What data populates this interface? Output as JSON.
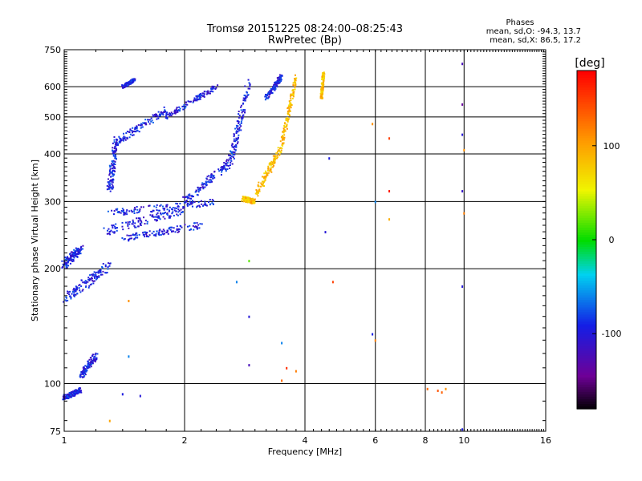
{
  "title": "Tromsø 20151225 08:24:00–08:25:43",
  "subtitle": "RwPretec (Bp)",
  "stats": {
    "heading": "Phases",
    "line_o": "mean, sd,O: -94.3, 13.7",
    "line_x": "mean, sd,X:  86.5, 17.2"
  },
  "chart_data": {
    "type": "scatter",
    "xlabel": "Frequency [MHz]",
    "ylabel": "Stationary phase Virtual Height [km]",
    "xscale": "log",
    "yscale": "log",
    "xlim": [
      1,
      16
    ],
    "ylim": [
      75,
      750
    ],
    "xticks": [
      1,
      2,
      4,
      6,
      8,
      10,
      16
    ],
    "xtick_labels": [
      "1",
      "2",
      "4",
      "6",
      "8",
      "10",
      "16"
    ],
    "yticks": [
      75,
      100,
      200,
      300,
      400,
      500,
      600,
      750
    ],
    "ytick_labels": [
      "75",
      "100",
      "200",
      "300",
      "400",
      "500",
      "600",
      "750"
    ],
    "grid": true,
    "colorbar": {
      "label": "[deg]",
      "range": [
        -180,
        180
      ],
      "ticks": [
        -100,
        0,
        100
      ],
      "tick_labels": [
        "-100",
        "0",
        "100"
      ]
    },
    "series": [
      {
        "mode": "O",
        "color_value": -94,
        "traces": [
          {
            "from": [
              1.0,
              165
            ],
            "to": [
              1.3,
              205
            ],
            "spread": 0.06
          },
          {
            "from": [
              1.0,
              205
            ],
            "to": [
              1.1,
              225
            ],
            "spread": 0.05
          },
          {
            "from": [
              1.25,
              250
            ],
            "to": [
              2.0,
              285
            ],
            "spread": 0.05
          },
          {
            "from": [
              1.4,
              240
            ],
            "to": [
              2.2,
              260
            ],
            "spread": 0.04
          },
          {
            "from": [
              1.3,
              280
            ],
            "to": [
              2.4,
              300
            ],
            "spread": 0.04
          },
          {
            "from": [
              2.0,
              300
            ],
            "to": [
              2.6,
              380
            ],
            "spread": 0.05
          },
          {
            "from": [
              2.6,
              380
            ],
            "to": [
              2.9,
              620
            ],
            "spread": 0.05
          },
          {
            "from": [
              1.35,
              430
            ],
            "to": [
              1.8,
              520
            ],
            "spread": 0.04
          },
          {
            "from": [
              1.8,
              500
            ],
            "to": [
              2.4,
              600
            ],
            "spread": 0.03
          },
          {
            "from": [
              1.3,
              320
            ],
            "to": [
              1.35,
              440
            ],
            "spread": 0.05
          },
          {
            "from": [
              3.2,
              560
            ],
            "to": [
              3.5,
              640
            ],
            "spread": 0.03
          },
          {
            "from": [
              1.0,
              92
            ],
            "to": [
              1.1,
              96
            ],
            "spread": 0.03
          },
          {
            "from": [
              1.1,
              105
            ],
            "to": [
              1.2,
              118
            ],
            "spread": 0.04
          },
          {
            "from": [
              1.4,
              600
            ],
            "to": [
              1.5,
              625
            ],
            "spread": 0.02
          }
        ]
      },
      {
        "mode": "X",
        "color_value": 86,
        "traces": [
          {
            "from": [
              2.8,
              305
            ],
            "to": [
              3.0,
              300
            ],
            "spread": 0.03
          },
          {
            "from": [
              3.0,
              310
            ],
            "to": [
              3.5,
              420
            ],
            "spread": 0.04
          },
          {
            "from": [
              3.5,
              420
            ],
            "to": [
              3.8,
              640
            ],
            "spread": 0.03
          },
          {
            "from": [
              4.4,
              560
            ],
            "to": [
              4.45,
              650
            ],
            "spread": 0.02
          }
        ]
      }
    ],
    "isolated_points": [
      {
        "x": 4.6,
        "y": 390,
        "v": -95
      },
      {
        "x": 4.5,
        "y": 250,
        "v": -100
      },
      {
        "x": 5.9,
        "y": 480,
        "v": 110
      },
      {
        "x": 6.5,
        "y": 440,
        "v": 150
      },
      {
        "x": 6.5,
        "y": 320,
        "v": 170
      },
      {
        "x": 6.5,
        "y": 270,
        "v": 95
      },
      {
        "x": 6.0,
        "y": 300,
        "v": -60
      },
      {
        "x": 4.7,
        "y": 185,
        "v": 150
      },
      {
        "x": 5.9,
        "y": 135,
        "v": -90
      },
      {
        "x": 6.0,
        "y": 130,
        "v": 120
      },
      {
        "x": 9.9,
        "y": 690,
        "v": -120
      },
      {
        "x": 9.9,
        "y": 540,
        "v": -140
      },
      {
        "x": 9.9,
        "y": 450,
        "v": -100
      },
      {
        "x": 10.0,
        "y": 410,
        "v": 110
      },
      {
        "x": 9.9,
        "y": 320,
        "v": -110
      },
      {
        "x": 10.0,
        "y": 280,
        "v": 120
      },
      {
        "x": 9.9,
        "y": 180,
        "v": -100
      },
      {
        "x": 9.9,
        "y": 76,
        "v": -95
      },
      {
        "x": 8.1,
        "y": 97,
        "v": 130
      },
      {
        "x": 8.6,
        "y": 96,
        "v": 140
      },
      {
        "x": 8.8,
        "y": 95,
        "v": 135
      },
      {
        "x": 9.0,
        "y": 97,
        "v": 110
      },
      {
        "x": 3.6,
        "y": 110,
        "v": 160
      },
      {
        "x": 3.8,
        "y": 108,
        "v": 120
      },
      {
        "x": 3.5,
        "y": 102,
        "v": 130
      },
      {
        "x": 3.5,
        "y": 128,
        "v": -60
      },
      {
        "x": 2.7,
        "y": 185,
        "v": -60
      },
      {
        "x": 2.9,
        "y": 210,
        "v": 20
      },
      {
        "x": 2.9,
        "y": 150,
        "v": -100
      },
      {
        "x": 2.9,
        "y": 112,
        "v": -120
      },
      {
        "x": 1.45,
        "y": 165,
        "v": 110
      },
      {
        "x": 1.45,
        "y": 118,
        "v": -60
      },
      {
        "x": 1.3,
        "y": 80,
        "v": 100
      },
      {
        "x": 1.55,
        "y": 93,
        "v": -100
      },
      {
        "x": 1.4,
        "y": 94,
        "v": -95
      }
    ]
  }
}
